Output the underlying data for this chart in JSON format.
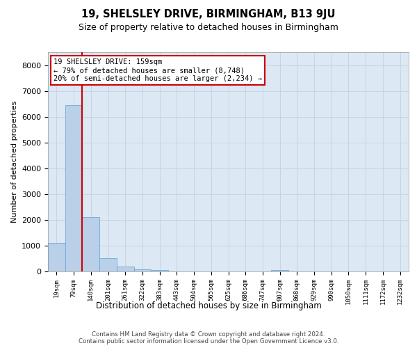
{
  "title1": "19, SHELSLEY DRIVE, BIRMINGHAM, B13 9JU",
  "title2": "Size of property relative to detached houses in Birmingham",
  "xlabel": "Distribution of detached houses by size in Birmingham",
  "ylabel": "Number of detached properties",
  "categories": [
    "19sqm",
    "79sqm",
    "140sqm",
    "201sqm",
    "261sqm",
    "322sqm",
    "383sqm",
    "443sqm",
    "504sqm",
    "565sqm",
    "625sqm",
    "686sqm",
    "747sqm",
    "807sqm",
    "868sqm",
    "929sqm",
    "990sqm",
    "1050sqm",
    "1111sqm",
    "1172sqm",
    "1232sqm"
  ],
  "bar_values": [
    1100,
    6450,
    2100,
    500,
    200,
    90,
    60,
    0,
    0,
    0,
    0,
    0,
    0,
    60,
    0,
    0,
    0,
    0,
    0,
    0,
    0
  ],
  "bar_color": "#bad0e8",
  "bar_edge_color": "#6aaad4",
  "vline_x": 2,
  "vline_color": "#cc0000",
  "annotation_text": "19 SHELSLEY DRIVE: 159sqm\n← 79% of detached houses are smaller (8,748)\n20% of semi-detached houses are larger (2,234) →",
  "annotation_box_color": "white",
  "annotation_box_edge_color": "#cc0000",
  "grid_color": "#c8d4e4",
  "background_color": "#dce8f4",
  "ylim": [
    0,
    8500
  ],
  "yticks": [
    0,
    1000,
    2000,
    3000,
    4000,
    5000,
    6000,
    7000,
    8000
  ],
  "footer_line1": "Contains HM Land Registry data © Crown copyright and database right 2024.",
  "footer_line2": "Contains public sector information licensed under the Open Government Licence v3.0."
}
